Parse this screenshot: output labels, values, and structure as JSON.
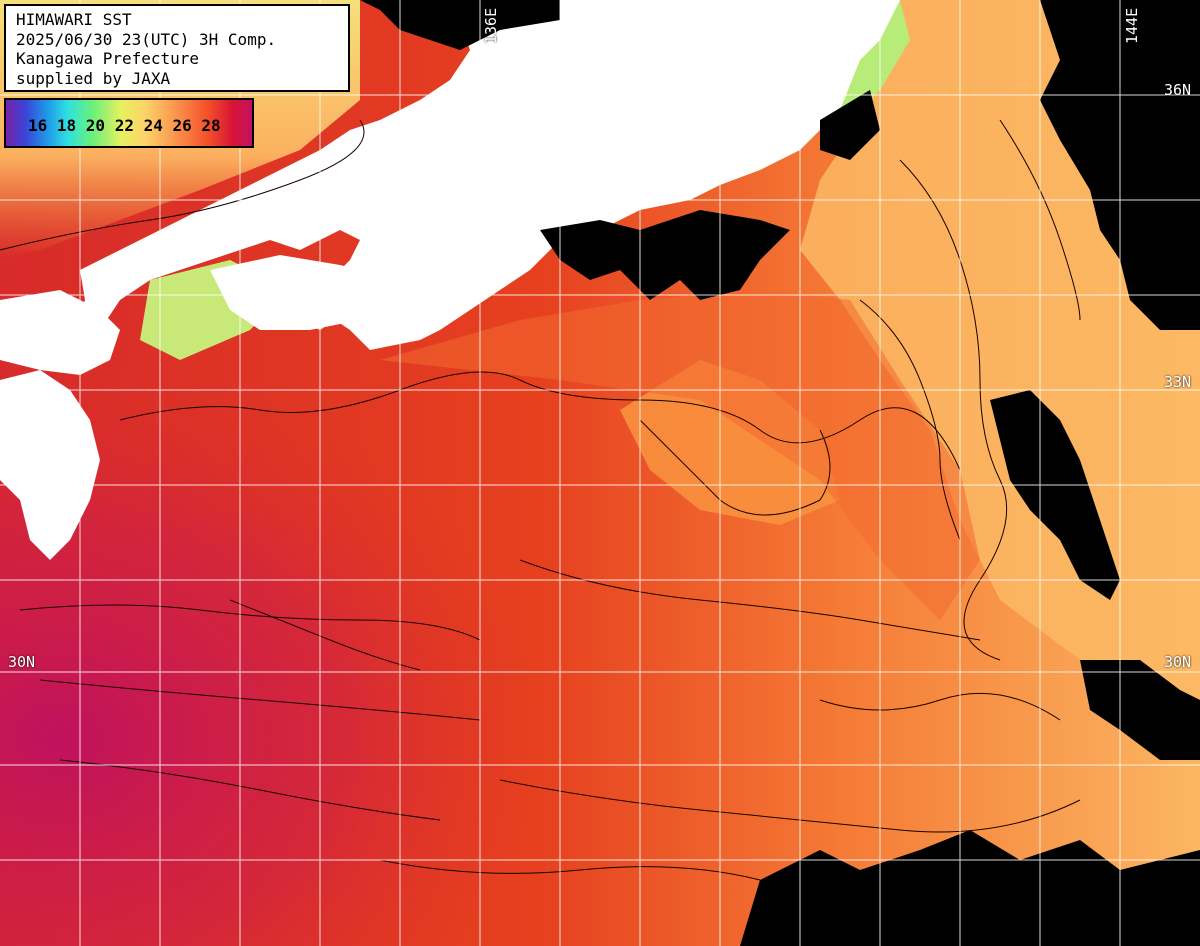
{
  "header": {
    "line1": "HIMAWARI SST",
    "line2": "2025/06/30 23(UTC) 3H Comp.",
    "line3": "Kanagawa Prefecture",
    "line4": "supplied by JAXA"
  },
  "scale": {
    "labels": "16 18 20 22 24 26 28"
  },
  "grid": {
    "lat_labels": {
      "lat36": "36N",
      "lat33": "33N",
      "lat30_left": "30N",
      "lat30_right": "30N"
    },
    "lon_labels": {
      "lon136": "136E",
      "lon144": "144E"
    }
  },
  "colors": {
    "land": "#ffffff",
    "cloud": "#000000",
    "sst_warm": "#e8301c",
    "sst_hot": "#c41060",
    "sst_mid": "#f4702a",
    "sst_cool": "#fbb35c",
    "sst_cold": "#f6e070",
    "grid": "#ffffff",
    "contour": "#1a0000"
  }
}
